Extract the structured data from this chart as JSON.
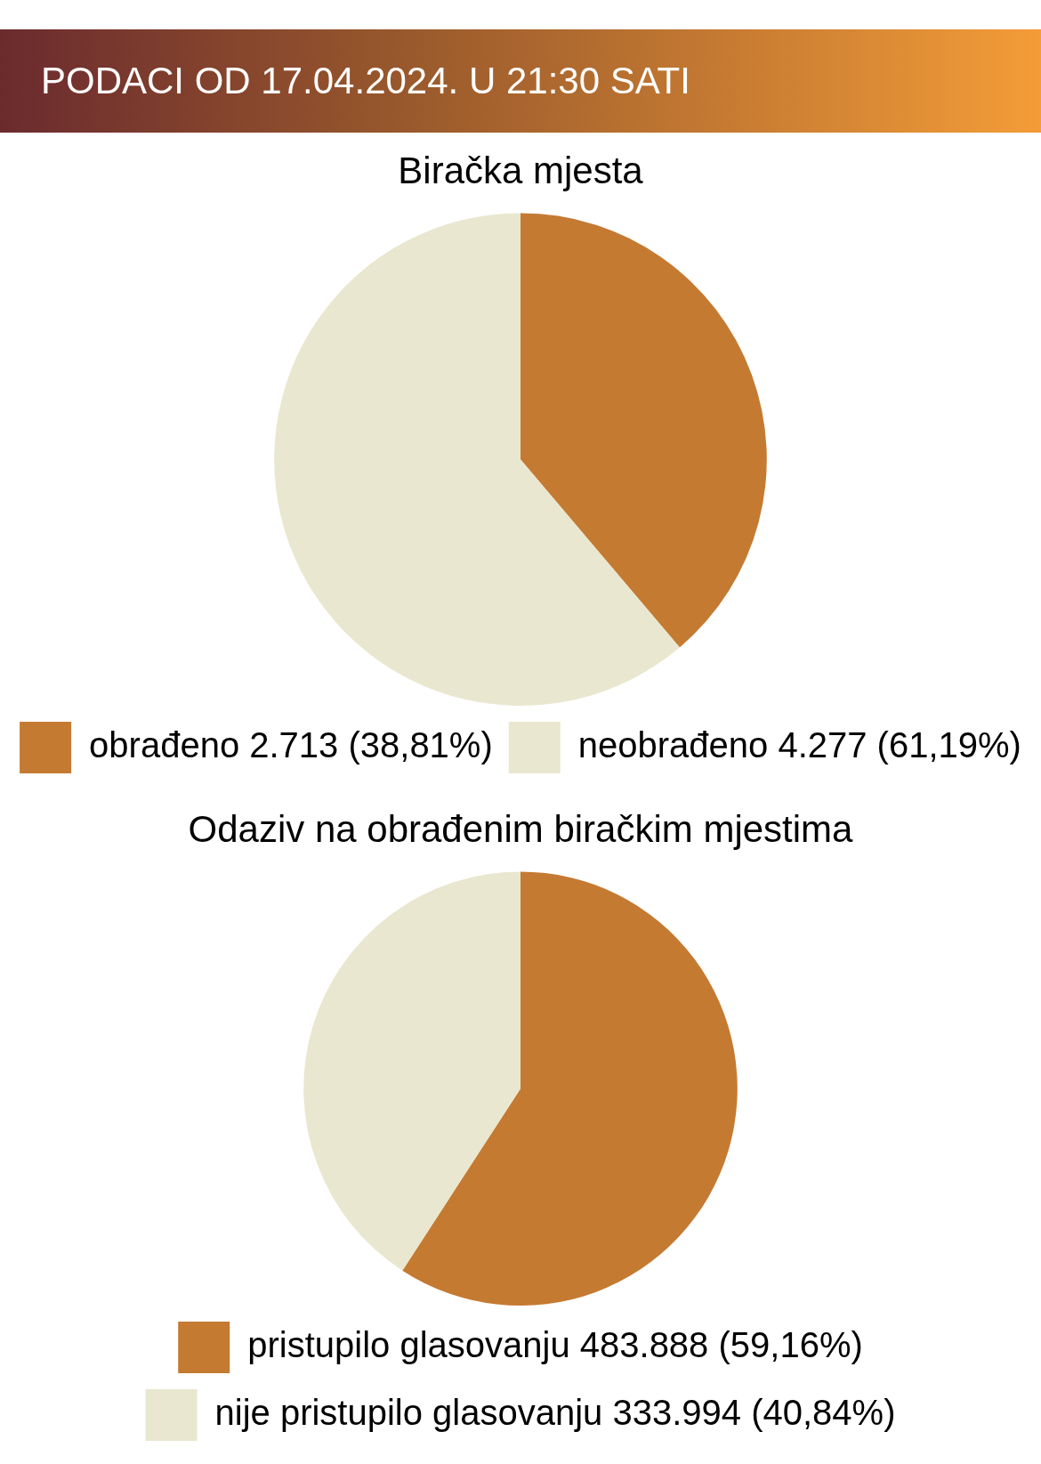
{
  "chart_data": [
    {
      "type": "pie",
      "title": "PODACI OD 17.04.2024. U 21:30 SATI",
      "subtitle": "Biračka mjesta",
      "categories": [
        "obrađeno 2.713 (38,81%)",
        "neobrađeno 4.277 (61,19%)"
      ],
      "values": [
        2713,
        4277
      ],
      "colors": [
        "#c57a32",
        "#e9e7cf"
      ],
      "legend": "bottom"
    },
    {
      "type": "pie",
      "title": "Odaziv na obrađenim biračkim mjestima",
      "categories": [
        "pristupilo glasovanju 483.888 (59,16%)",
        "nije pristupilo glasovanju 333.994 (40,84%)"
      ],
      "values": [
        483888,
        333994
      ],
      "colors": [
        "#c57a32",
        "#e9e7cf"
      ],
      "legend": "bottom"
    }
  ]
}
